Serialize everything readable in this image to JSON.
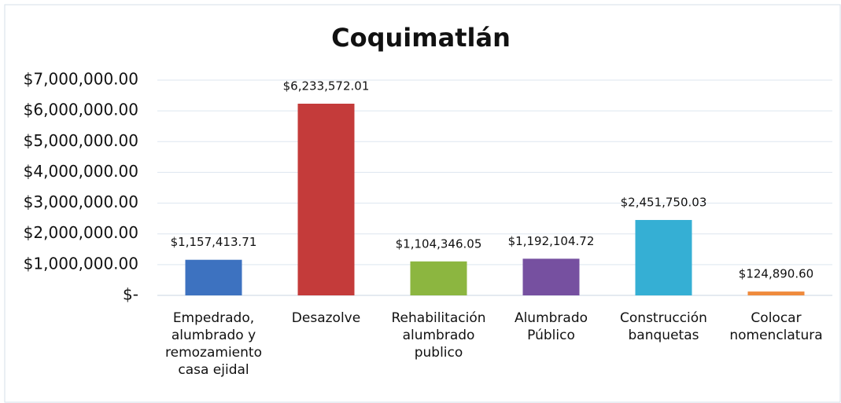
{
  "chart_data": {
    "type": "bar",
    "title": "Coquimatlán",
    "categories": [
      "Empedrado, alumbrado y remozamiento casa ejidal",
      "Desazolve",
      "Rehabilitación alumbrado publico",
      "Alumbrado Público",
      "Construcción banquetas",
      "Colocar nomenclatura"
    ],
    "values": [
      1157413.71,
      6233572.01,
      1104346.05,
      1192104.72,
      2451750.03,
      124890.6
    ],
    "value_labels": [
      "$1,157,413.71",
      "$6,233,572.01",
      "$1,104,346.05",
      "$1,192,104.72",
      "$2,451,750.03",
      "$124,890.60"
    ],
    "colors": [
      "#3d72c0",
      "#c43b3a",
      "#8cb640",
      "#7650a0",
      "#35afd4",
      "#ef8a3c"
    ],
    "ylim": [
      0,
      7000000
    ],
    "yticks": [
      {
        "value": 0,
        "label": "$-"
      },
      {
        "value": 1000000,
        "label": "$1,000,000.00"
      },
      {
        "value": 2000000,
        "label": "$2,000,000.00"
      },
      {
        "value": 3000000,
        "label": "$3,000,000.00"
      },
      {
        "value": 4000000,
        "label": "$4,000,000.00"
      },
      {
        "value": 5000000,
        "label": "$5,000,000.00"
      },
      {
        "value": 6000000,
        "label": "$6,000,000.00"
      },
      {
        "value": 7000000,
        "label": "$7,000,000.00"
      }
    ],
    "grid": true
  }
}
